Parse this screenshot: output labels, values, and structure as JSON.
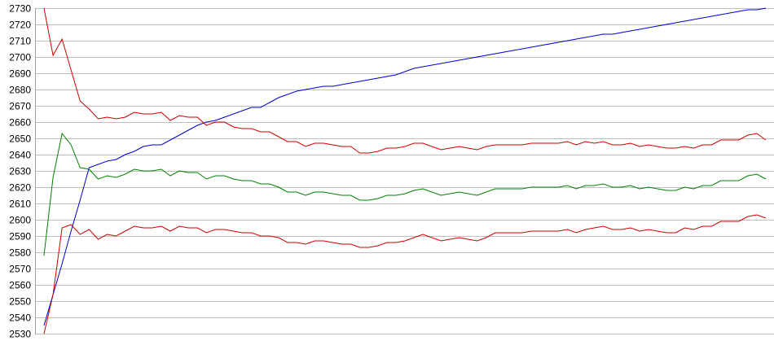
{
  "chart_data": {
    "type": "line",
    "title": "",
    "xlabel": "",
    "ylabel": "",
    "ylim": [
      2530,
      2730
    ],
    "y_ticks": [
      2530,
      2540,
      2550,
      2560,
      2570,
      2580,
      2590,
      2600,
      2610,
      2620,
      2630,
      2640,
      2650,
      2660,
      2670,
      2680,
      2690,
      2700,
      2710,
      2720,
      2730
    ],
    "x_tick_labels": false,
    "grid": "horizontal",
    "legend": "none",
    "colors": {
      "grid": "#c0c0c0",
      "axis": "#a0a0a0",
      "blue": "#0000cc",
      "red": "#cc0000",
      "green": "#008000"
    },
    "series": [
      {
        "color": "#0000cc",
        "values": [
          2535,
          2554,
          2573,
          2593,
          2612,
          2632,
          2634,
          2636,
          2637,
          2640,
          2642,
          2645,
          2646,
          2646,
          2649,
          2652,
          2655,
          2658,
          2660,
          2661,
          2663,
          2665,
          2667,
          2669,
          2669,
          2672,
          2675,
          2677,
          2679,
          2680,
          2681,
          2682,
          2682,
          2683,
          2684,
          2685,
          2686,
          2687,
          2688,
          2689,
          2691,
          2693,
          2694,
          2695,
          2696,
          2697,
          2698,
          2699,
          2700,
          2701,
          2702,
          2703,
          2704,
          2705,
          2706,
          2707,
          2708,
          2709,
          2710,
          2711,
          2712,
          2713,
          2714,
          2714,
          2715,
          2716,
          2717,
          2718,
          2719,
          2720,
          2721,
          2722,
          2723,
          2724,
          2725,
          2726,
          2727,
          2728,
          2729,
          2729,
          2730
        ]
      },
      {
        "color": "#cc0000",
        "values": [
          2730,
          2701,
          2711,
          2692,
          2673,
          2668,
          2662,
          2663,
          2662,
          2663,
          2666,
          2665,
          2665,
          2666,
          2661,
          2664,
          2663,
          2663,
          2658,
          2660,
          2660,
          2657,
          2656,
          2656,
          2654,
          2654,
          2651,
          2648,
          2648,
          2645,
          2647,
          2647,
          2646,
          2645,
          2645,
          2641,
          2641,
          2642,
          2644,
          2644,
          2645,
          2647,
          2647,
          2645,
          2643,
          2644,
          2645,
          2644,
          2643,
          2645,
          2646,
          2646,
          2646,
          2646,
          2647,
          2647,
          2647,
          2647,
          2648,
          2646,
          2648,
          2647,
          2648,
          2646,
          2646,
          2647,
          2645,
          2646,
          2645,
          2644,
          2644,
          2645,
          2644,
          2646,
          2646,
          2649,
          2649,
          2649,
          2652,
          2653,
          2649
        ]
      },
      {
        "color": "#008000",
        "values": [
          2578,
          2626,
          2653,
          2646,
          2632,
          2631,
          2625,
          2627,
          2626,
          2628,
          2631,
          2630,
          2630,
          2631,
          2627,
          2630,
          2629,
          2629,
          2625,
          2627,
          2627,
          2625,
          2624,
          2624,
          2622,
          2622,
          2620,
          2617,
          2617,
          2615,
          2617,
          2617,
          2616,
          2615,
          2615,
          2612,
          2612,
          2613,
          2615,
          2615,
          2616,
          2618,
          2619,
          2617,
          2615,
          2616,
          2617,
          2616,
          2615,
          2617,
          2619,
          2619,
          2619,
          2619,
          2620,
          2620,
          2620,
          2620,
          2621,
          2619,
          2621,
          2621,
          2622,
          2620,
          2620,
          2621,
          2619,
          2620,
          2619,
          2618,
          2618,
          2620,
          2619,
          2621,
          2621,
          2624,
          2624,
          2624,
          2627,
          2628,
          2625
        ]
      },
      {
        "color": "#cc0000",
        "values": [
          2530,
          2554,
          2595,
          2597,
          2591,
          2594,
          2588,
          2591,
          2590,
          2593,
          2596,
          2595,
          2595,
          2596,
          2593,
          2596,
          2595,
          2595,
          2592,
          2594,
          2594,
          2593,
          2592,
          2592,
          2590,
          2590,
          2589,
          2586,
          2586,
          2585,
          2587,
          2587,
          2586,
          2585,
          2585,
          2583,
          2583,
          2584,
          2586,
          2586,
          2587,
          2589,
          2591,
          2589,
          2587,
          2588,
          2589,
          2588,
          2587,
          2589,
          2592,
          2592,
          2592,
          2592,
          2593,
          2593,
          2593,
          2593,
          2594,
          2592,
          2594,
          2595,
          2596,
          2594,
          2594,
          2595,
          2593,
          2594,
          2593,
          2592,
          2592,
          2595,
          2594,
          2596,
          2596,
          2599,
          2599,
          2599,
          2602,
          2603,
          2601
        ]
      }
    ]
  }
}
